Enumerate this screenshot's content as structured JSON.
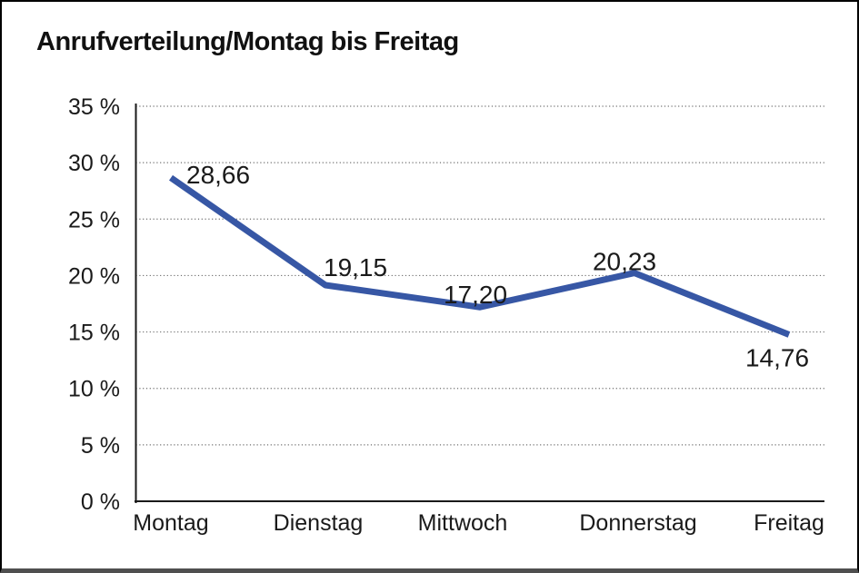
{
  "window": {
    "background": "#ffffff",
    "frame_border_color": "#000000",
    "frame_bottom_color": "#4f4f4f"
  },
  "chart_data": {
    "type": "line",
    "title": "Anrufverteilung/Montag bis Freitag",
    "categories": [
      "Montag",
      "Dienstag",
      "Mittwoch",
      "Donnerstag",
      "Freitag"
    ],
    "series": [
      {
        "name": "Anrufverteilung",
        "values": [
          28.66,
          19.15,
          17.2,
          20.23,
          14.76
        ]
      }
    ],
    "value_labels": [
      "28,66",
      "19,15",
      "17,20",
      "20,23",
      "14,76"
    ],
    "yticks": [
      {
        "value": 35,
        "label": "35 %"
      },
      {
        "value": 30,
        "label": "30 %"
      },
      {
        "value": 25,
        "label": "25 %"
      },
      {
        "value": 20,
        "label": "20 %"
      },
      {
        "value": 15,
        "label": "15 %"
      },
      {
        "value": 10,
        "label": "10 %"
      },
      {
        "value": 5,
        "label": "5 %"
      },
      {
        "value": 0,
        "label": "0 %"
      }
    ],
    "ylim": [
      0,
      35
    ],
    "xlabel": "",
    "ylabel": "",
    "grid": "horizontal-dotted",
    "legend": "none",
    "line_color": "#3757A5",
    "grid_color": "#6e6e6e",
    "axis_color": "#1a1a1a",
    "text_color": "#1a1a1a"
  }
}
